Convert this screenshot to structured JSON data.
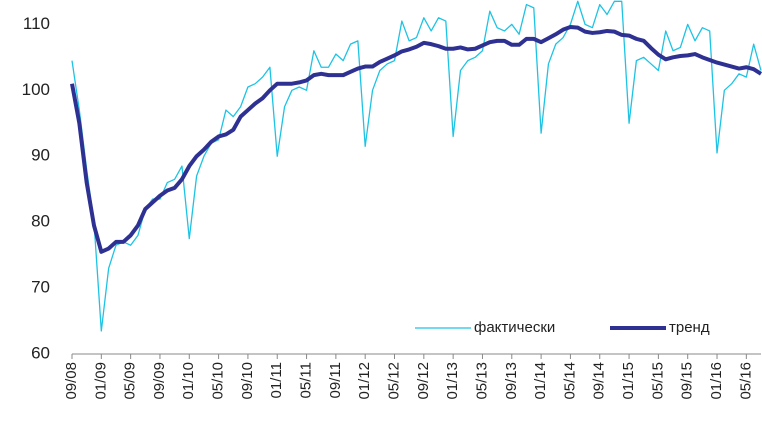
{
  "chart_data": {
    "type": "line",
    "categories": [
      "09/08",
      null,
      null,
      null,
      "01/09",
      null,
      null,
      null,
      "05/09",
      null,
      null,
      null,
      "09/09",
      null,
      null,
      null,
      "01/10",
      null,
      null,
      null,
      "05/10",
      null,
      null,
      null,
      "09/10",
      null,
      null,
      null,
      "01/11",
      null,
      null,
      null,
      "05/11",
      null,
      null,
      null,
      "09/11",
      null,
      null,
      null,
      "01/12",
      null,
      null,
      null,
      "05/12",
      null,
      null,
      null,
      "09/12",
      null,
      null,
      null,
      "01/13",
      null,
      null,
      null,
      "05/13",
      null,
      null,
      null,
      "09/13",
      null,
      null,
      null,
      "01/14",
      null,
      null,
      null,
      "05/14",
      null,
      null,
      null,
      "09/14",
      null,
      null,
      null,
      "01/15",
      null,
      null,
      null,
      "05/15",
      null,
      null,
      null,
      "09/15",
      null,
      null,
      null,
      "01/16",
      null,
      null,
      null,
      "05/16",
      null,
      null
    ],
    "series": [
      {
        "name": "фактически",
        "color": "#1ec3e4",
        "width": 1.3,
        "values": [
          104.5,
          97,
          88,
          80,
          63.5,
          73,
          76.5,
          77,
          76.5,
          78,
          82,
          83.5,
          83.5,
          86,
          86.5,
          88.5,
          77.5,
          87,
          90,
          92,
          92.5,
          97,
          96,
          97.5,
          100.5,
          101,
          102,
          103.5,
          90,
          97.5,
          100,
          100.5,
          100,
          106,
          103.5,
          103.5,
          105.5,
          104.5,
          107,
          107.5,
          91.5,
          100,
          103,
          104,
          104.5,
          110.5,
          107.5,
          108,
          111,
          109,
          111,
          110.5,
          93,
          103,
          104.5,
          105,
          106,
          112,
          109.5,
          109,
          110,
          108.5,
          113,
          112.5,
          93.5,
          104,
          107,
          108,
          110,
          113.5,
          110,
          109.5,
          113,
          111.5,
          113.5,
          113.5,
          95,
          104.5,
          105,
          104,
          103,
          109,
          106,
          106.5,
          110,
          107.5,
          109.5,
          109,
          90.5,
          100,
          101,
          102.5,
          102,
          107,
          103
        ]
      },
      {
        "name": "тренд",
        "color": "#2e3192",
        "width": 4,
        "values": [
          101,
          95,
          86,
          79.5,
          75.5,
          76,
          77,
          77,
          78,
          79.5,
          82,
          83,
          84,
          84.8,
          85.2,
          86.5,
          88.5,
          90,
          91,
          92.2,
          93,
          93.3,
          94,
          96,
          97,
          98,
          98.8,
          100,
          101,
          101,
          101,
          101.2,
          101.5,
          102.3,
          102.5,
          102.3,
          102.3,
          102.3,
          102.8,
          103.3,
          103.6,
          103.6,
          104.3,
          104.8,
          105.3,
          105.9,
          106.2,
          106.6,
          107.2,
          107,
          106.7,
          106.3,
          106.3,
          106.5,
          106.2,
          106.3,
          106.8,
          107.3,
          107.5,
          107.5,
          106.9,
          106.9,
          107.8,
          107.8,
          107.3,
          107.9,
          108.5,
          109.2,
          109.6,
          109.5,
          108.9,
          108.7,
          108.8,
          109,
          108.9,
          108.4,
          108.3,
          107.8,
          107.5,
          106.4,
          105.4,
          104.7,
          105,
          105.2,
          105.3,
          105.5,
          105,
          104.6,
          104.2,
          103.9,
          103.6,
          103.3,
          103.5,
          103.2,
          102.5
        ]
      }
    ],
    "ylim": [
      60,
      114
    ],
    "yticks": [
      60,
      70,
      80,
      90,
      100,
      110
    ],
    "legend": "lower right"
  }
}
